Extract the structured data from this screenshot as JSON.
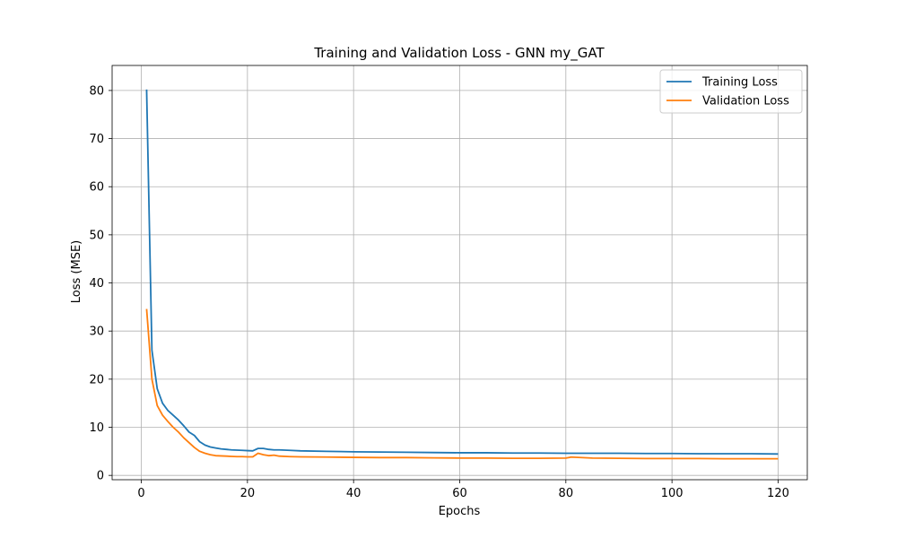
{
  "chart_data": {
    "type": "line",
    "title": "Training and Validation Loss - GNN my_GAT",
    "xlabel": "Epochs",
    "ylabel": "Loss (MSE)",
    "xlim": [
      -5.5,
      125.5
    ],
    "ylim": [
      -0.9,
      85.2
    ],
    "xticks": [
      0,
      20,
      40,
      60,
      80,
      100,
      120
    ],
    "yticks": [
      0,
      10,
      20,
      30,
      40,
      50,
      60,
      70,
      80
    ],
    "grid": true,
    "legend_position": "top-right",
    "series": [
      {
        "name": "Training Loss",
        "color": "#1f77b4",
        "x": [
          1,
          2,
          3,
          4,
          5,
          6,
          7,
          8,
          9,
          10,
          11,
          12,
          13,
          14,
          15,
          16,
          17,
          18,
          19,
          20,
          21,
          22,
          23,
          24,
          25,
          26,
          28,
          30,
          35,
          40,
          45,
          50,
          55,
          60,
          65,
          70,
          75,
          80,
          85,
          90,
          95,
          100,
          105,
          110,
          115,
          120
        ],
        "values": [
          80.2,
          26.0,
          18.0,
          15.0,
          13.5,
          12.5,
          11.5,
          10.3,
          9.0,
          8.3,
          7.0,
          6.3,
          5.9,
          5.7,
          5.5,
          5.4,
          5.3,
          5.25,
          5.2,
          5.15,
          5.1,
          5.6,
          5.6,
          5.4,
          5.3,
          5.3,
          5.2,
          5.1,
          5.0,
          4.9,
          4.85,
          4.8,
          4.75,
          4.7,
          4.7,
          4.65,
          4.65,
          4.6,
          4.6,
          4.6,
          4.55,
          4.55,
          4.5,
          4.5,
          4.5,
          4.45
        ]
      },
      {
        "name": "Validation Loss",
        "color": "#ff7f0e",
        "x": [
          1,
          2,
          3,
          4,
          5,
          6,
          7,
          8,
          9,
          10,
          11,
          12,
          13,
          14,
          15,
          16,
          17,
          18,
          19,
          20,
          21,
          22,
          23,
          24,
          25,
          26,
          28,
          30,
          35,
          40,
          45,
          50,
          55,
          60,
          65,
          70,
          75,
          80,
          81,
          85,
          90,
          95,
          100,
          105,
          110,
          115,
          120
        ],
        "values": [
          34.6,
          20.0,
          14.5,
          12.5,
          11.2,
          10.0,
          9.0,
          7.8,
          6.8,
          5.8,
          5.0,
          4.6,
          4.3,
          4.1,
          4.05,
          4.0,
          3.95,
          3.9,
          3.9,
          3.85,
          3.85,
          4.6,
          4.3,
          4.1,
          4.2,
          4.0,
          3.9,
          3.85,
          3.8,
          3.75,
          3.7,
          3.7,
          3.65,
          3.6,
          3.6,
          3.55,
          3.55,
          3.6,
          3.8,
          3.6,
          3.55,
          3.5,
          3.5,
          3.5,
          3.45,
          3.45,
          3.45
        ]
      }
    ]
  }
}
